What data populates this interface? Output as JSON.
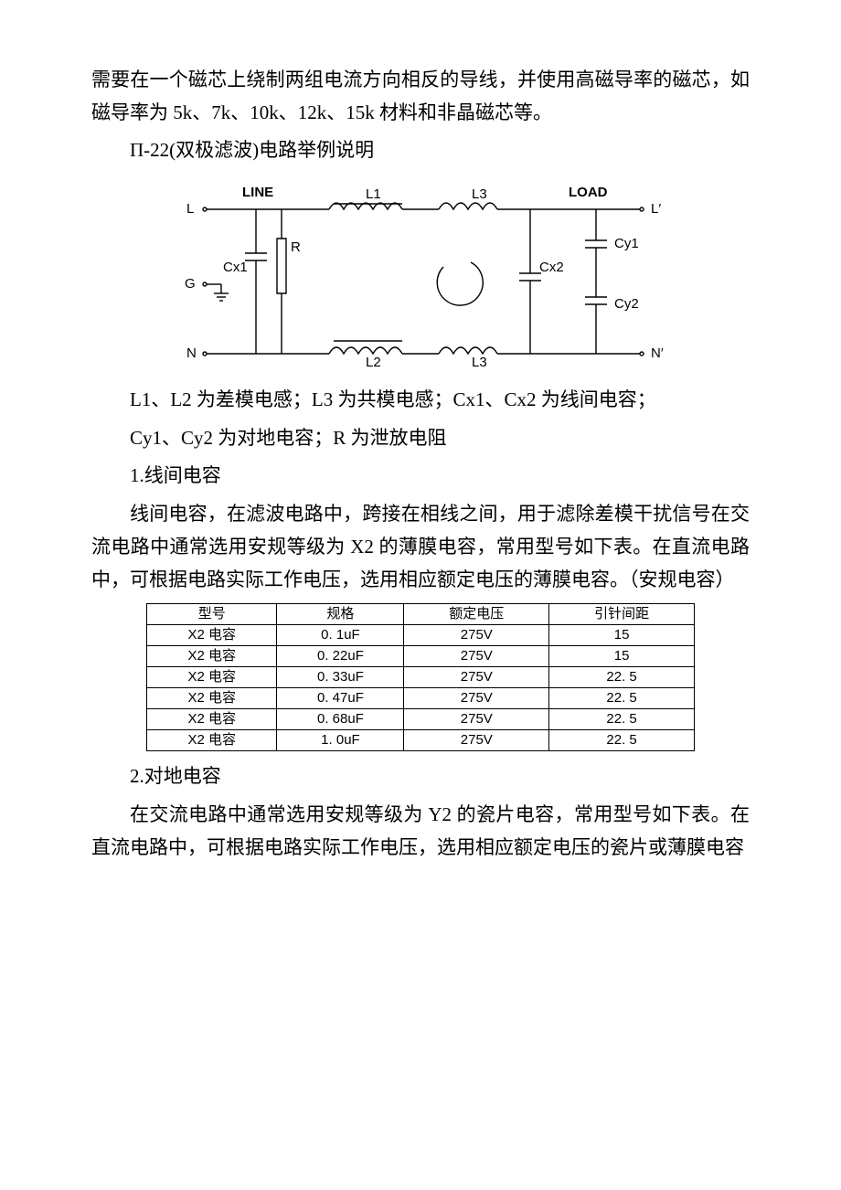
{
  "p1": "需要在一个磁芯上绕制两组电流方向相反的导线，并使用高磁导率的磁芯，如磁导率为 5k、7k、10k、12k、15k 材料和非晶磁芯等。",
  "p2": "Π-22(双极滤波)电路举例说明",
  "diagram": {
    "line_label": "LINE",
    "load_label": "LOAD",
    "L": "L",
    "Lp": "L′",
    "G": "G",
    "N": "N",
    "Np": "N′",
    "L1": "L1",
    "L2": "L2",
    "L3a": "L3",
    "L3b": "L3",
    "Cx1": "Cx1",
    "Cx2": "Cx2",
    "Cy1": "Cy1",
    "Cy2": "Cy2",
    "R": "R"
  },
  "p3": "L1、L2 为差模电感；L3 为共模电感；Cx1、Cx2 为线间电容；",
  "p4": "Cy1、Cy2 为对地电容；R 为泄放电阻",
  "p5": "1.线间电容",
  "p6": "线间电容，在滤波电路中，跨接在相线之间，用于滤除差模干扰信号在交流电路中通常选用安规等级为 X2 的薄膜电容，常用型号如下表。在直流电路中，可根据电路实际工作电压，选用相应额定电压的薄膜电容。（安规电容）",
  "table1": {
    "columns": [
      "型号",
      "规格",
      "额定电压",
      "引针间距"
    ],
    "rows": [
      [
        "X2 电容",
        "0. 1uF",
        "275V",
        "15"
      ],
      [
        "X2 电容",
        "0. 22uF",
        "275V",
        "15"
      ],
      [
        "X2 电容",
        "0. 33uF",
        "275V",
        "22. 5"
      ],
      [
        "X2 电容",
        "0. 47uF",
        "275V",
        "22. 5"
      ],
      [
        "X2 电容",
        "0. 68uF",
        "275V",
        "22. 5"
      ],
      [
        "X2 电容",
        "1. 0uF",
        "275V",
        "22. 5"
      ]
    ]
  },
  "p7": "2.对地电容",
  "p8": "在交流电路中通常选用安规等级为 Y2 的瓷片电容，常用型号如下表。在直流电路中，可根据电路实际工作电压，选用相应额定电压的瓷片或薄膜电容"
}
